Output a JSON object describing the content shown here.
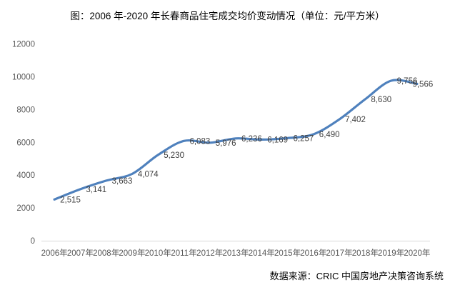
{
  "title": "图：2006 年-2020 年长春商品住宅成交均价变动情况（单位：元/平方米）",
  "source": "数据来源：CRIC 中国房地产决策咨询系统",
  "chart_data": {
    "type": "line",
    "smooth": true,
    "title": "图：2006 年-2020 年长春商品住宅成交均价变动情况（单位：元/平方米）",
    "categories": [
      "2006年",
      "2007年",
      "2008年",
      "2009年",
      "2010年",
      "2011年",
      "2012年",
      "2013年",
      "2014年",
      "2015年",
      "2016年",
      "2017年",
      "2018年",
      "2019年",
      "2020年"
    ],
    "values": [
      2515,
      3141,
      3663,
      4074,
      5230,
      6083,
      5976,
      6236,
      6169,
      6257,
      6490,
      7402,
      8630,
      9756,
      9566
    ],
    "data_labels": [
      "2,515",
      "3,141",
      "3,663",
      "4,074",
      "5,230",
      "6,083",
      "5,976",
      "6,236",
      "6,169",
      "6,257",
      "6,490",
      "7,402",
      "8,630",
      "9,756",
      "9,566"
    ],
    "xlabel": "",
    "ylabel": "",
    "ylim": [
      0,
      12000
    ],
    "ytick_interval": 2000,
    "yticks": [
      "0",
      "2000",
      "4000",
      "6000",
      "8000",
      "10000",
      "12000"
    ],
    "grid": false,
    "legend": false,
    "colors": {
      "line": "#4f81bd",
      "data_label": "#404040",
      "tick_label": "#595959",
      "axis_line": "#d9d9d9",
      "background": "#ffffff"
    }
  }
}
